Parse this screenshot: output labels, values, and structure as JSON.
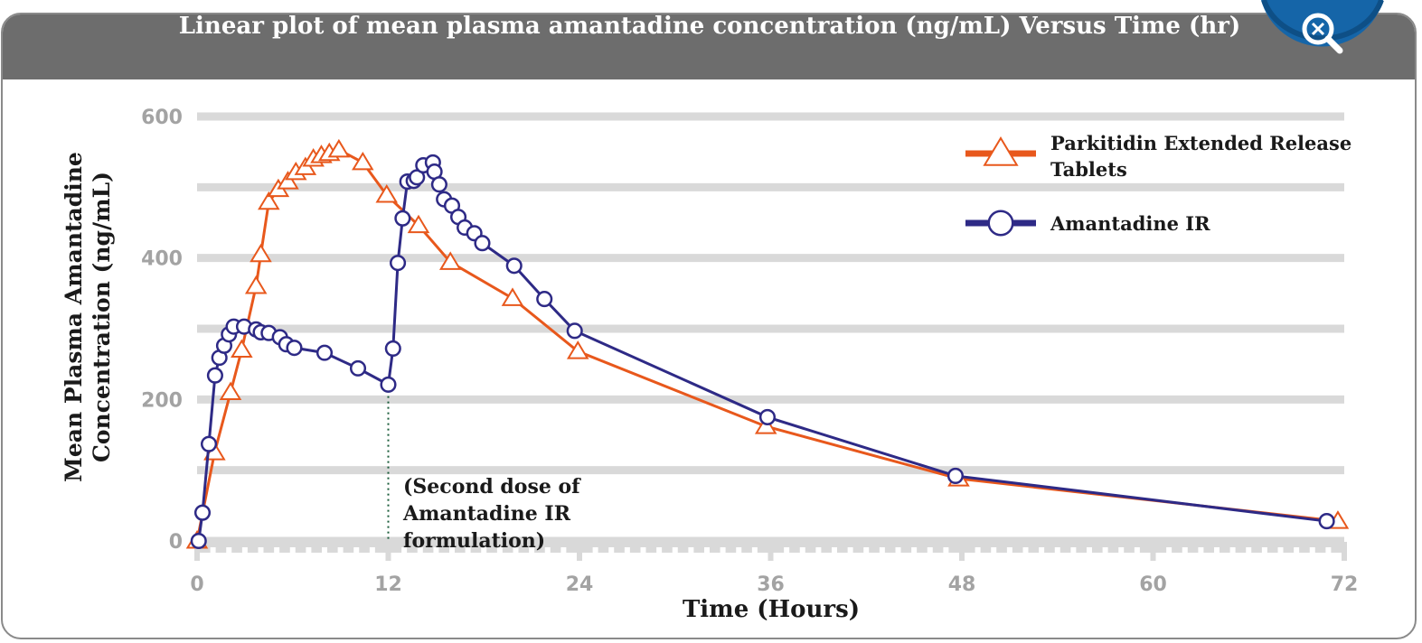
{
  "chart_data": {
    "type": "line",
    "title": "Linear plot of mean plasma amantadine concentration (ng/mL) Versus Time (hr)",
    "x_label": "Time (Hours)",
    "y_label": "Mean Plasma Amantadine Concentration (ng/mL)",
    "xlim": [
      0,
      72
    ],
    "xticks": [
      0,
      12,
      24,
      36,
      48,
      60,
      72
    ],
    "ylim": [
      0,
      600
    ],
    "yticks": [
      0,
      200,
      400,
      600
    ],
    "yminor": [
      100,
      300,
      500
    ],
    "grid": true,
    "legend": "upper right",
    "annotation": {
      "text": "(Second dose of Amantadine IR formulation)",
      "x": 12
    },
    "series": [
      {
        "name": "Parkitidin Extended Release Tablets",
        "color": "#e8581c",
        "marker": "triangle",
        "x": [
          0,
          1.1,
          2.1,
          2.8,
          3.7,
          4,
          4.5,
          5.1,
          5.7,
          6.2,
          6.8,
          7.3,
          7.8,
          8.3,
          8.9,
          10.4,
          11.9,
          13.9,
          15.9,
          19.8,
          23.9,
          35.7,
          47.8,
          71.6
        ],
        "values": [
          0,
          125,
          210,
          270,
          360,
          405,
          479,
          497,
          508,
          521,
          528,
          540,
          545,
          548,
          553,
          535,
          489,
          446,
          394,
          343,
          268,
          162,
          88,
          28
        ]
      },
      {
        "name": "Amantadine IR",
        "color": "#2e2a86",
        "marker": "circle",
        "x": [
          0.1,
          0.34,
          0.74,
          1.13,
          1.4,
          1.7,
          2.0,
          2.3,
          2.95,
          3.7,
          4.0,
          4.5,
          5.2,
          5.6,
          6.1,
          8.0,
          10.1,
          12.0,
          12.3,
          12.6,
          12.9,
          13.2,
          13.6,
          13.8,
          14.2,
          14.8,
          14.9,
          15.2,
          15.5,
          16.0,
          16.4,
          16.8,
          17.4,
          17.9,
          19.9,
          21.8,
          23.7,
          35.8,
          47.6,
          70.9
        ],
        "values": [
          0,
          40,
          137,
          234,
          259,
          276,
          292,
          303,
          303,
          299,
          295,
          294,
          288,
          278,
          273,
          266,
          244,
          221,
          272,
          393,
          456,
          508,
          509,
          514,
          531,
          535,
          522,
          504,
          483,
          474,
          458,
          443,
          435,
          421,
          389,
          342,
          297,
          175,
          92,
          28
        ]
      }
    ]
  }
}
